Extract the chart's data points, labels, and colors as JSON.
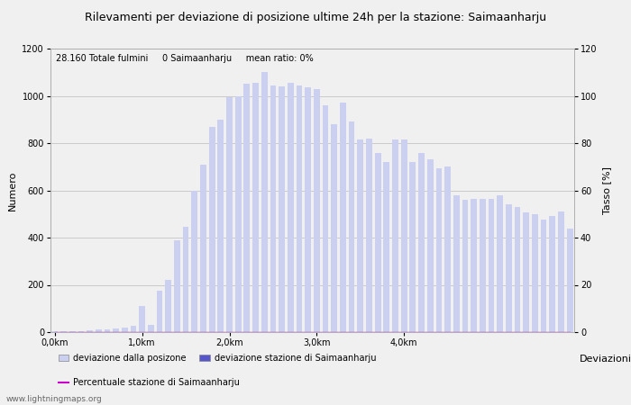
{
  "title": "Rilevamenti per deviazione di posizione ultime 24h per la stazione: Saimaanharju",
  "subtitle": "28.160 Totale fulmini     0 Saimaanharju     mean ratio: 0%",
  "xlabel": "Deviazioni",
  "ylabel_left": "Numero",
  "ylabel_right": "Tasso [%]",
  "watermark": "www.lightningmaps.org",
  "ylim_left": [
    0,
    1200
  ],
  "ylim_right": [
    0,
    120
  ],
  "yticks_left": [
    0,
    200,
    400,
    600,
    800,
    1000,
    1200
  ],
  "yticks_right": [
    0,
    20,
    40,
    60,
    80,
    100,
    120
  ],
  "xtick_labels": [
    "0,0km",
    "1,0km",
    "2,0km",
    "3,0km",
    "4,0km"
  ],
  "xtick_positions": [
    0,
    10,
    20,
    30,
    40
  ],
  "bar_values": [
    2,
    3,
    4,
    5,
    8,
    10,
    12,
    15,
    20,
    25,
    110,
    30,
    175,
    220,
    390,
    445,
    600,
    710,
    870,
    900,
    995,
    1000,
    1050,
    1055,
    1100,
    1045,
    1040,
    1055,
    1045,
    1035,
    1030,
    960,
    880,
    970,
    890,
    815,
    820,
    760,
    720,
    815,
    815,
    720,
    760,
    730,
    695,
    700,
    580,
    560,
    565,
    565,
    565,
    580,
    540,
    530,
    505,
    500,
    475,
    490,
    510,
    440
  ],
  "station_bar_values": [
    0,
    0,
    0,
    0,
    0,
    0,
    0,
    0,
    0,
    0,
    0,
    0,
    0,
    0,
    0,
    0,
    0,
    0,
    0,
    0,
    0,
    0,
    0,
    0,
    0,
    0,
    0,
    0,
    0,
    0,
    0,
    0,
    0,
    0,
    0,
    0,
    0,
    0,
    0,
    0,
    0,
    0,
    0,
    0,
    0,
    0,
    0,
    0,
    0,
    0,
    0,
    0,
    0,
    0,
    0,
    0,
    0,
    0,
    0,
    0
  ],
  "ratio_values": [
    0,
    0,
    0,
    0,
    0,
    0,
    0,
    0,
    0,
    0,
    0,
    0,
    0,
    0,
    0,
    0,
    0,
    0,
    0,
    0,
    0,
    0,
    0,
    0,
    0,
    0,
    0,
    0,
    0,
    0,
    0,
    0,
    0,
    0,
    0,
    0,
    0,
    0,
    0,
    0,
    0,
    0,
    0,
    0,
    0,
    0,
    0,
    0,
    0,
    0,
    0,
    0,
    0,
    0,
    0,
    0,
    0,
    0,
    0,
    0
  ],
  "bar_color_light": "#ccd0f0",
  "bar_color_dark": "#5555cc",
  "ratio_line_color": "#cc00cc",
  "grid_color": "#bbbbbb",
  "background_color": "#f0f0f0",
  "title_fontsize": 9,
  "axis_fontsize": 8,
  "tick_fontsize": 7,
  "legend_fontsize": 7,
  "subtitle_fontsize": 7
}
